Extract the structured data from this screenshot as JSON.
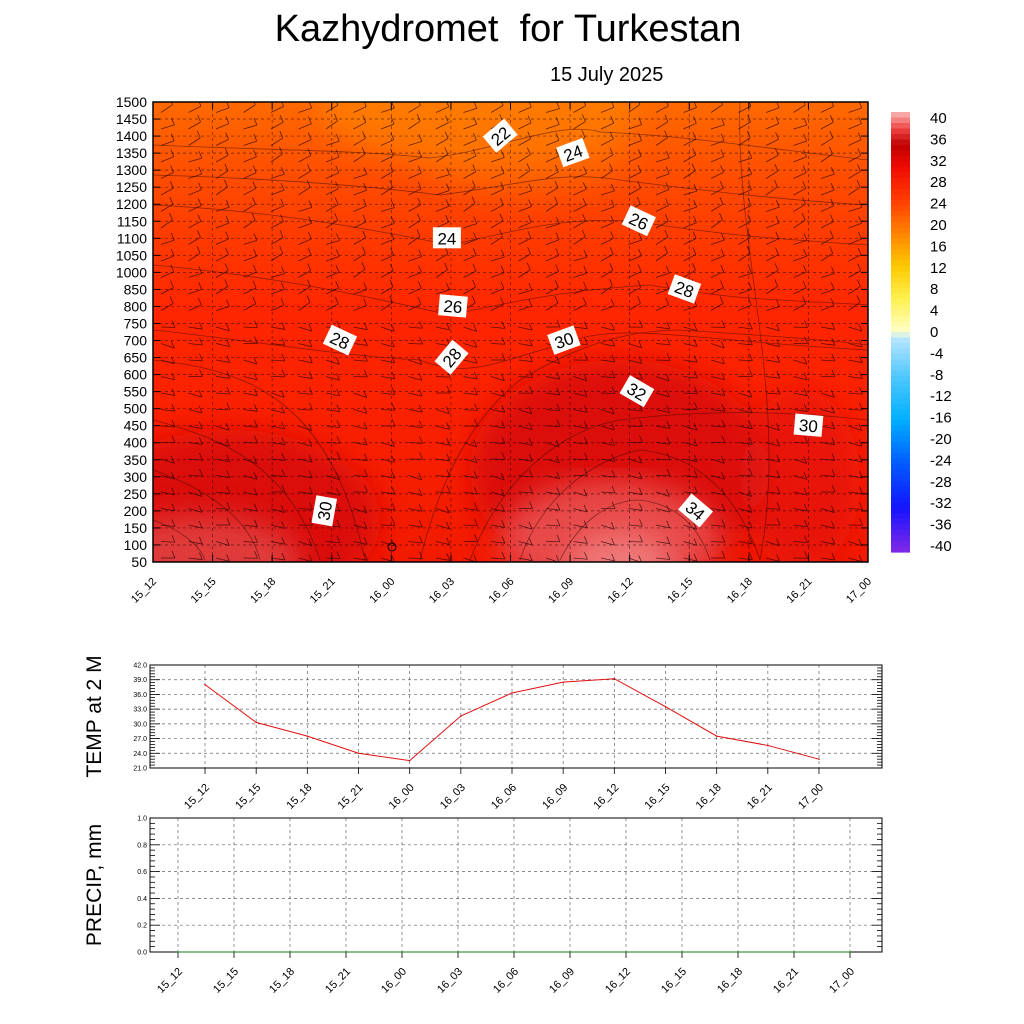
{
  "header": {
    "title": "Kazhydromet  for Turkestan",
    "subtitle": "15 July 2025"
  },
  "colors": {
    "background": "#ffffff",
    "line_temp": "#e01010",
    "line_precip": "#1a7a1a",
    "field_base": "#ff2a00"
  },
  "chart_data": [
    {
      "type": "heatmap",
      "title": "Kazhydromet  for Turkestan",
      "subtitle": "15 July 2025",
      "x": [
        "15_12",
        "15_15",
        "15_18",
        "15_21",
        "16_00",
        "16_03",
        "16_06",
        "16_09",
        "16_12",
        "16_15",
        "16_18",
        "16_21",
        "17_00"
      ],
      "y_ticks": [
        50,
        100,
        150,
        200,
        250,
        300,
        350,
        400,
        450,
        500,
        550,
        600,
        650,
        700,
        750,
        800,
        850,
        1000,
        1050,
        1100,
        1150,
        1200,
        1250,
        1300,
        1350,
        1400,
        1450,
        1500
      ],
      "colorbar_ticks": [
        40,
        36,
        32,
        28,
        24,
        20,
        16,
        12,
        8,
        4,
        0,
        -4,
        -8,
        -12,
        -16,
        -20,
        -24,
        -28,
        -32,
        -36,
        -40
      ],
      "contour_labels": [
        {
          "value": "22",
          "x": "16_06",
          "y": 1400
        },
        {
          "value": "24",
          "x": "16_09",
          "y": 1350
        },
        {
          "value": "24",
          "x": "16_03",
          "y": 1100
        },
        {
          "value": "26",
          "x": "16_12",
          "y": 1150
        },
        {
          "value": "26",
          "x": "16_03",
          "y": 800
        },
        {
          "value": "28",
          "x": "16_15",
          "y": 850
        },
        {
          "value": "28",
          "x": "15_21",
          "y": 700
        },
        {
          "value": "28",
          "x": "16_03",
          "y": 650
        },
        {
          "value": "30",
          "x": "16_09",
          "y": 700
        },
        {
          "value": "32",
          "x": "16_12",
          "y": 550
        },
        {
          "value": "30",
          "x": "16_21",
          "y": 450
        },
        {
          "value": "30",
          "x": "15_21",
          "y": 200
        },
        {
          "value": "34",
          "x": "16_15",
          "y": 200
        }
      ],
      "grid": true
    },
    {
      "type": "line",
      "ylabel": "TEMP at 2 M",
      "x": [
        "15_12",
        "15_15",
        "15_18",
        "15_21",
        "16_00",
        "16_03",
        "16_06",
        "16_09",
        "16_12",
        "16_15",
        "16_18",
        "16_21",
        "17_00"
      ],
      "y_ticks": [
        "21.0",
        "24.0",
        "27.0",
        "30.0",
        "33.0",
        "36.0",
        "39.0",
        "42.0"
      ],
      "ylim": [
        21,
        42
      ],
      "series": [
        {
          "values": [
            38.0,
            30.3,
            27.5,
            24.0,
            22.5,
            31.6,
            36.3,
            38.5,
            39.2,
            33.5,
            27.5,
            25.6,
            22.8
          ]
        }
      ],
      "grid": true
    },
    {
      "type": "line",
      "ylabel": "PRECIP, mm",
      "x": [
        "15_12",
        "15_15",
        "15_18",
        "15_21",
        "16_00",
        "16_03",
        "16_06",
        "16_09",
        "16_12",
        "16_15",
        "16_18",
        "16_21",
        "17_00"
      ],
      "y_ticks": [
        "0.0",
        "0.2",
        "0.4",
        "0.6",
        "0.8",
        "1.0"
      ],
      "ylim": [
        0,
        1
      ],
      "series": [
        {
          "values": [
            0,
            0,
            0,
            0,
            0,
            0,
            0,
            0,
            0,
            0,
            0,
            0,
            0
          ]
        }
      ],
      "grid": true
    }
  ]
}
